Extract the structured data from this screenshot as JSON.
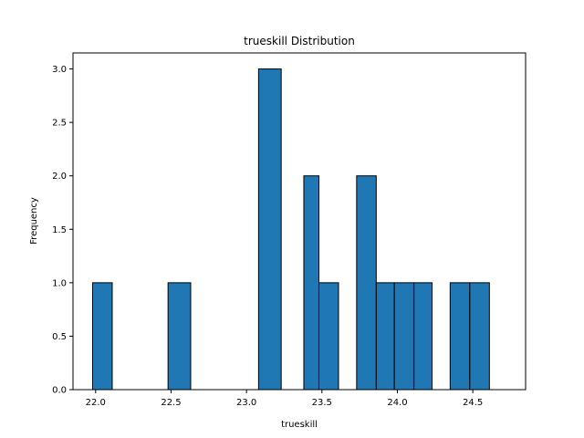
{
  "chart_data": {
    "type": "bar",
    "title": "trueskill Distribution",
    "xlabel": "trueskill",
    "ylabel": "Frequency",
    "xlim": [
      21.85,
      24.85
    ],
    "ylim": [
      0,
      3.15
    ],
    "xticks": [
      {
        "value": 22.0,
        "label": "22.0"
      },
      {
        "value": 22.5,
        "label": "22.5"
      },
      {
        "value": 23.0,
        "label": "23.0"
      },
      {
        "value": 23.5,
        "label": "23.5"
      },
      {
        "value": 24.0,
        "label": "24.0"
      },
      {
        "value": 24.5,
        "label": "24.5"
      }
    ],
    "yticks": [
      {
        "value": 0.0,
        "label": "0.0"
      },
      {
        "value": 0.5,
        "label": "0.5"
      },
      {
        "value": 1.0,
        "label": "1.0"
      },
      {
        "value": 1.5,
        "label": "1.5"
      },
      {
        "value": 2.0,
        "label": "2.0"
      },
      {
        "value": 2.5,
        "label": "2.5"
      },
      {
        "value": 3.0,
        "label": "3.0"
      }
    ],
    "bins": [
      {
        "x0": 21.98,
        "x1": 22.11,
        "value": 1
      },
      {
        "x0": 22.48,
        "x1": 22.63,
        "value": 1
      },
      {
        "x0": 23.08,
        "x1": 23.23,
        "value": 3
      },
      {
        "x0": 23.38,
        "x1": 23.48,
        "value": 2
      },
      {
        "x0": 23.48,
        "x1": 23.61,
        "value": 1
      },
      {
        "x0": 23.73,
        "x1": 23.86,
        "value": 2
      },
      {
        "x0": 23.86,
        "x1": 23.98,
        "value": 1
      },
      {
        "x0": 23.98,
        "x1": 24.11,
        "value": 1
      },
      {
        "x0": 24.11,
        "x1": 24.23,
        "value": 1
      },
      {
        "x0": 24.35,
        "x1": 24.48,
        "value": 1
      },
      {
        "x0": 24.48,
        "x1": 24.61,
        "value": 1
      }
    ],
    "bar_color": "#1f77b4",
    "edge_color": "#000000",
    "grid": false,
    "legend": "none"
  }
}
